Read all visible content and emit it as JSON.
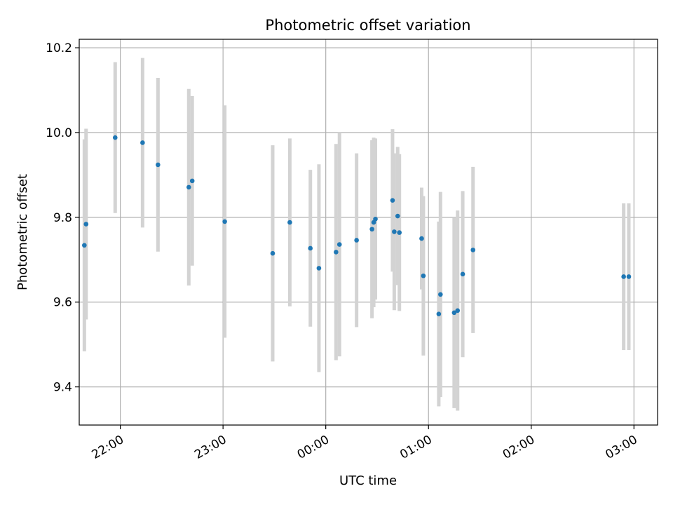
{
  "chart_data": {
    "type": "scatter",
    "title": "Photometric offset variation",
    "xlabel": "UTC time",
    "ylabel": "Photometric offset",
    "x_ticks": [
      "22:00",
      "23:00",
      "00:00",
      "01:00",
      "02:00",
      "03:00"
    ],
    "y_ticks": [
      "9.4",
      "9.6",
      "9.8",
      "10.0",
      "10.2"
    ],
    "grid": true,
    "xlim_hours": [
      21.6,
      27.23
    ],
    "ylim": [
      9.31,
      10.22
    ],
    "colors": {
      "point": "#1f77b4",
      "errorbar": "#d3d3d3",
      "grid": "#b0b0b0"
    },
    "points": [
      {
        "time": "21:39",
        "y": 9.734,
        "yerr": 0.25
      },
      {
        "time": "21:40",
        "y": 9.784,
        "yerr": 0.225
      },
      {
        "time": "21:57",
        "y": 9.988,
        "yerr": 0.178
      },
      {
        "time": "22:13",
        "y": 9.976,
        "yerr": 0.2
      },
      {
        "time": "22:22",
        "y": 9.924,
        "yerr": 0.205
      },
      {
        "time": "22:40",
        "y": 9.871,
        "yerr": 0.232
      },
      {
        "time": "22:42",
        "y": 9.886,
        "yerr": 0.2
      },
      {
        "time": "23:01",
        "y": 9.79,
        "yerr": 0.274
      },
      {
        "time": "23:29",
        "y": 9.715,
        "yerr": 0.255
      },
      {
        "time": "23:39",
        "y": 9.788,
        "yerr": 0.198
      },
      {
        "time": "23:51",
        "y": 9.727,
        "yerr": 0.185
      },
      {
        "time": "23:56",
        "y": 9.68,
        "yerr": 0.245
      },
      {
        "time": "00:06",
        "y": 9.718,
        "yerr": 0.255
      },
      {
        "time": "00:08",
        "y": 9.736,
        "yerr": 0.264
      },
      {
        "time": "00:18",
        "y": 9.746,
        "yerr": 0.205
      },
      {
        "time": "00:27",
        "y": 9.772,
        "yerr": 0.21
      },
      {
        "time": "00:28",
        "y": 9.788,
        "yerr": 0.2
      },
      {
        "time": "00:29",
        "y": 9.796,
        "yerr": 0.19
      },
      {
        "time": "00:39",
        "y": 9.84,
        "yerr": 0.168
      },
      {
        "time": "00:40",
        "y": 9.766,
        "yerr": 0.185
      },
      {
        "time": "00:42",
        "y": 9.803,
        "yerr": 0.163
      },
      {
        "time": "00:43",
        "y": 9.764,
        "yerr": 0.185
      },
      {
        "time": "00:56",
        "y": 9.75,
        "yerr": 0.12
      },
      {
        "time": "00:57",
        "y": 9.662,
        "yerr": 0.188
      },
      {
        "time": "01:06",
        "y": 9.572,
        "yerr": 0.218
      },
      {
        "time": "01:07",
        "y": 9.618,
        "yerr": 0.242
      },
      {
        "time": "01:15",
        "y": 9.575,
        "yerr": 0.225
      },
      {
        "time": "01:17",
        "y": 9.58,
        "yerr": 0.236
      },
      {
        "time": "01:20",
        "y": 9.666,
        "yerr": 0.196
      },
      {
        "time": "01:26",
        "y": 9.723,
        "yerr": 0.196
      },
      {
        "time": "02:54",
        "y": 9.66,
        "yerr": 0.173
      },
      {
        "time": "02:57",
        "y": 9.66,
        "yerr": 0.173
      }
    ]
  }
}
